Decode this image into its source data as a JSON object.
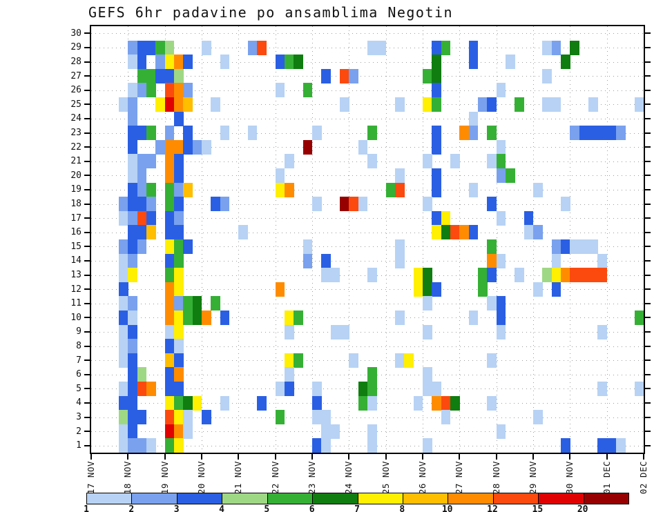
{
  "chart_data": {
    "type": "heatmap",
    "title": "GEFS 6hr padavine po ansamblima Negotin",
    "members": 30,
    "steps_per_day": 4,
    "x_tick_labels": [
      "17 NOV",
      "18 NOV",
      "19 NOV",
      "20 NOV",
      "21 NOV",
      "22 NOV",
      "23 NOV",
      "24 NOV",
      "25 NOV",
      "26 NOV",
      "27 NOV",
      "28 NOV",
      "29 NOV",
      "30 NOV",
      "01 DEC",
      "02 DEC"
    ],
    "y_tick_labels": [
      "1",
      "2",
      "3",
      "4",
      "5",
      "6",
      "7",
      "8",
      "9",
      "10",
      "11",
      "12",
      "13",
      "14",
      "15",
      "16",
      "17",
      "18",
      "19",
      "20",
      "21",
      "22",
      "23",
      "24",
      "25",
      "26",
      "27",
      "28",
      "29",
      "30"
    ],
    "colorbar": {
      "labels": [
        "1",
        "2",
        "3",
        "4",
        "5",
        "6",
        "7",
        "8",
        "10",
        "12",
        "15",
        "20"
      ],
      "thresholds": [
        1,
        2,
        3,
        4,
        5,
        6,
        7,
        8,
        10,
        12,
        15,
        20
      ],
      "colors": [
        "#b7d2f4",
        "#79a1ee",
        "#2a5fe4",
        "#9fd884",
        "#35b035",
        "#0f7d0f",
        "#ffef00",
        "#ffbe00",
        "#ff8c00",
        "#fc4a0e",
        "#e00202",
        "#970000"
      ]
    },
    "cells": [
      [
        29,
        4,
        2.5
      ],
      [
        29,
        5,
        3.5
      ],
      [
        29,
        6,
        3.5
      ],
      [
        29,
        7,
        5.5
      ],
      [
        29,
        8,
        4.5
      ],
      [
        29,
        12,
        1.5
      ],
      [
        29,
        17,
        2.5
      ],
      [
        29,
        18,
        13
      ],
      [
        29,
        30,
        1.5
      ],
      [
        29,
        31,
        1.5
      ],
      [
        29,
        37,
        3.5
      ],
      [
        29,
        38,
        5.5
      ],
      [
        29,
        41,
        3.5
      ],
      [
        29,
        49,
        1.5
      ],
      [
        29,
        50,
        2.5
      ],
      [
        29,
        52,
        6.5
      ],
      [
        28,
        4,
        1.5
      ],
      [
        28,
        5,
        3.5
      ],
      [
        28,
        7,
        2.5
      ],
      [
        28,
        8,
        7.5
      ],
      [
        28,
        9,
        11
      ],
      [
        28,
        10,
        3.5
      ],
      [
        28,
        14,
        1.5
      ],
      [
        28,
        20,
        3.5
      ],
      [
        28,
        21,
        5.5
      ],
      [
        28,
        22,
        6.5
      ],
      [
        28,
        37,
        6.5
      ],
      [
        28,
        41,
        3.5
      ],
      [
        28,
        45,
        1.5
      ],
      [
        28,
        51,
        6.5
      ],
      [
        27,
        5,
        5.5
      ],
      [
        27,
        6,
        5.5
      ],
      [
        27,
        7,
        3.5
      ],
      [
        27,
        8,
        3.5
      ],
      [
        27,
        9,
        4.5
      ],
      [
        27,
        25,
        3.5
      ],
      [
        27,
        27,
        13
      ],
      [
        27,
        28,
        2.5
      ],
      [
        27,
        36,
        5.5
      ],
      [
        27,
        37,
        6.5
      ],
      [
        27,
        49,
        1.5
      ],
      [
        26,
        4,
        1.5
      ],
      [
        26,
        5,
        2.5
      ],
      [
        26,
        6,
        5.5
      ],
      [
        26,
        8,
        13
      ],
      [
        26,
        9,
        11
      ],
      [
        26,
        10,
        2.5
      ],
      [
        26,
        20,
        1.5
      ],
      [
        26,
        23,
        5.5
      ],
      [
        26,
        37,
        3.5
      ],
      [
        26,
        44,
        1.5
      ],
      [
        25,
        3,
        1.5
      ],
      [
        25,
        4,
        2.5
      ],
      [
        25,
        7,
        7.5
      ],
      [
        25,
        8,
        17
      ],
      [
        25,
        9,
        11
      ],
      [
        25,
        10,
        9
      ],
      [
        25,
        13,
        1.5
      ],
      [
        25,
        27,
        1.5
      ],
      [
        25,
        33,
        1.5
      ],
      [
        25,
        36,
        7.5
      ],
      [
        25,
        37,
        5.5
      ],
      [
        25,
        42,
        2.5
      ],
      [
        25,
        43,
        3.5
      ],
      [
        25,
        46,
        5.5
      ],
      [
        25,
        49,
        1.5
      ],
      [
        25,
        50,
        1.5
      ],
      [
        25,
        54,
        1.5
      ],
      [
        25,
        59,
        1.5
      ],
      [
        24,
        4,
        2.5
      ],
      [
        24,
        9,
        3.5
      ],
      [
        24,
        41,
        1.5
      ],
      [
        23,
        4,
        3.5
      ],
      [
        23,
        5,
        3.5
      ],
      [
        23,
        6,
        5.5
      ],
      [
        23,
        8,
        2.5
      ],
      [
        23,
        10,
        3.5
      ],
      [
        23,
        14,
        1.5
      ],
      [
        23,
        17,
        1.5
      ],
      [
        23,
        24,
        1.5
      ],
      [
        23,
        30,
        5.5
      ],
      [
        23,
        37,
        3.5
      ],
      [
        23,
        40,
        11
      ],
      [
        23,
        41,
        2.5
      ],
      [
        23,
        43,
        5.5
      ],
      [
        23,
        52,
        2.5
      ],
      [
        23,
        53,
        3.5
      ],
      [
        23,
        54,
        3.5
      ],
      [
        23,
        55,
        3.5
      ],
      [
        23,
        56,
        3.5
      ],
      [
        23,
        57,
        2.5
      ],
      [
        22,
        4,
        3.5
      ],
      [
        22,
        7,
        2.5
      ],
      [
        22,
        8,
        11
      ],
      [
        22,
        9,
        11
      ],
      [
        22,
        10,
        3.5
      ],
      [
        22,
        11,
        2.5
      ],
      [
        22,
        12,
        1.5
      ],
      [
        22,
        23,
        25
      ],
      [
        22,
        29,
        1.5
      ],
      [
        22,
        37,
        3.5
      ],
      [
        22,
        44,
        1.5
      ],
      [
        21,
        4,
        1.5
      ],
      [
        21,
        5,
        2.5
      ],
      [
        21,
        6,
        2.5
      ],
      [
        21,
        8,
        11
      ],
      [
        21,
        9,
        3.5
      ],
      [
        21,
        21,
        1.5
      ],
      [
        21,
        30,
        1.5
      ],
      [
        21,
        36,
        1.5
      ],
      [
        21,
        39,
        1.5
      ],
      [
        21,
        43,
        1.5
      ],
      [
        21,
        44,
        5.5
      ],
      [
        20,
        4,
        1.5
      ],
      [
        20,
        5,
        2.5
      ],
      [
        20,
        8,
        11
      ],
      [
        20,
        9,
        3.5
      ],
      [
        20,
        20,
        1.5
      ],
      [
        20,
        33,
        1.5
      ],
      [
        20,
        37,
        3.5
      ],
      [
        20,
        44,
        2.5
      ],
      [
        20,
        45,
        5.5
      ],
      [
        19,
        4,
        3.5
      ],
      [
        19,
        5,
        2.5
      ],
      [
        19,
        6,
        5.5
      ],
      [
        19,
        8,
        5.5
      ],
      [
        19,
        9,
        2.5
      ],
      [
        19,
        10,
        9
      ],
      [
        19,
        20,
        7.5
      ],
      [
        19,
        21,
        11
      ],
      [
        19,
        32,
        5.5
      ],
      [
        19,
        33,
        13
      ],
      [
        19,
        37,
        3.5
      ],
      [
        19,
        41,
        1.5
      ],
      [
        19,
        48,
        1.5
      ],
      [
        18,
        3,
        2.5
      ],
      [
        18,
        4,
        3.5
      ],
      [
        18,
        5,
        3.5
      ],
      [
        18,
        6,
        2.5
      ],
      [
        18,
        8,
        5.5
      ],
      [
        18,
        9,
        3.5
      ],
      [
        18,
        13,
        3.5
      ],
      [
        18,
        14,
        2.5
      ],
      [
        18,
        24,
        1.5
      ],
      [
        18,
        27,
        25
      ],
      [
        18,
        28,
        13
      ],
      [
        18,
        29,
        1.5
      ],
      [
        18,
        36,
        1.5
      ],
      [
        18,
        43,
        3.5
      ],
      [
        18,
        51,
        1.5
      ],
      [
        17,
        3,
        1.5
      ],
      [
        17,
        4,
        2.5
      ],
      [
        17,
        5,
        13
      ],
      [
        17,
        6,
        3.5
      ],
      [
        17,
        8,
        3.5
      ],
      [
        17,
        9,
        2.5
      ],
      [
        17,
        37,
        3.5
      ],
      [
        17,
        38,
        7.5
      ],
      [
        17,
        44,
        1.5
      ],
      [
        17,
        47,
        3.5
      ],
      [
        16,
        4,
        3.5
      ],
      [
        16,
        5,
        3.5
      ],
      [
        16,
        6,
        9
      ],
      [
        16,
        8,
        3.5
      ],
      [
        16,
        9,
        3.5
      ],
      [
        16,
        16,
        1.5
      ],
      [
        16,
        37,
        7.5
      ],
      [
        16,
        38,
        6.5
      ],
      [
        16,
        39,
        13
      ],
      [
        16,
        40,
        11
      ],
      [
        16,
        41,
        3.5
      ],
      [
        16,
        47,
        1.5
      ],
      [
        16,
        48,
        2.5
      ],
      [
        15,
        3,
        2.5
      ],
      [
        15,
        4,
        3.5
      ],
      [
        15,
        5,
        2.5
      ],
      [
        15,
        8,
        7.5
      ],
      [
        15,
        9,
        5.5
      ],
      [
        15,
        10,
        3.5
      ],
      [
        15,
        23,
        1.5
      ],
      [
        15,
        33,
        1.5
      ],
      [
        15,
        43,
        5.5
      ],
      [
        15,
        50,
        2.5
      ],
      [
        15,
        51,
        3.5
      ],
      [
        15,
        52,
        1.5
      ],
      [
        15,
        53,
        1.5
      ],
      [
        15,
        54,
        1.5
      ],
      [
        14,
        3,
        1.5
      ],
      [
        14,
        4,
        2.5
      ],
      [
        14,
        8,
        3.5
      ],
      [
        14,
        9,
        5.5
      ],
      [
        14,
        23,
        2.5
      ],
      [
        14,
        25,
        3.5
      ],
      [
        14,
        33,
        1.5
      ],
      [
        14,
        43,
        11
      ],
      [
        14,
        44,
        1.5
      ],
      [
        14,
        50,
        1.5
      ],
      [
        14,
        55,
        1.5
      ],
      [
        13,
        3,
        1.5
      ],
      [
        13,
        4,
        7.5
      ],
      [
        13,
        8,
        5.5
      ],
      [
        13,
        9,
        7.5
      ],
      [
        13,
        25,
        1.5
      ],
      [
        13,
        26,
        1.5
      ],
      [
        13,
        30,
        1.5
      ],
      [
        13,
        35,
        7.5
      ],
      [
        13,
        36,
        6.5
      ],
      [
        13,
        42,
        5.5
      ],
      [
        13,
        43,
        3.5
      ],
      [
        13,
        46,
        1.5
      ],
      [
        13,
        49,
        4.5
      ],
      [
        13,
        50,
        7.5
      ],
      [
        13,
        51,
        11
      ],
      [
        13,
        52,
        13
      ],
      [
        13,
        53,
        13
      ],
      [
        13,
        54,
        13
      ],
      [
        13,
        55,
        13
      ],
      [
        12,
        3,
        3.5
      ],
      [
        12,
        8,
        11
      ],
      [
        12,
        9,
        7.5
      ],
      [
        12,
        20,
        11
      ],
      [
        12,
        35,
        7.5
      ],
      [
        12,
        36,
        6.5
      ],
      [
        12,
        37,
        3.5
      ],
      [
        12,
        42,
        5.5
      ],
      [
        12,
        48,
        1.5
      ],
      [
        12,
        50,
        3.5
      ],
      [
        11,
        3,
        1.5
      ],
      [
        11,
        4,
        2.5
      ],
      [
        11,
        8,
        11
      ],
      [
        11,
        9,
        2.5
      ],
      [
        11,
        10,
        5.5
      ],
      [
        11,
        11,
        6.5
      ],
      [
        11,
        13,
        5.5
      ],
      [
        11,
        36,
        1.5
      ],
      [
        11,
        43,
        1.5
      ],
      [
        11,
        44,
        3.5
      ],
      [
        10,
        3,
        3.5
      ],
      [
        10,
        4,
        1.5
      ],
      [
        10,
        8,
        11
      ],
      [
        10,
        9,
        7.5
      ],
      [
        10,
        10,
        5.5
      ],
      [
        10,
        11,
        6.5
      ],
      [
        10,
        12,
        11
      ],
      [
        10,
        14,
        3.5
      ],
      [
        10,
        21,
        7.5
      ],
      [
        10,
        22,
        5.5
      ],
      [
        10,
        33,
        1.5
      ],
      [
        10,
        41,
        1.5
      ],
      [
        10,
        44,
        3.5
      ],
      [
        10,
        59,
        5.5
      ],
      [
        9,
        3,
        1.5
      ],
      [
        9,
        4,
        3.5
      ],
      [
        9,
        8,
        1.5
      ],
      [
        9,
        9,
        7.5
      ],
      [
        9,
        21,
        1.5
      ],
      [
        9,
        26,
        1.5
      ],
      [
        9,
        27,
        1.5
      ],
      [
        9,
        36,
        1.5
      ],
      [
        9,
        44,
        1.5
      ],
      [
        9,
        55,
        1.5
      ],
      [
        8,
        3,
        1.5
      ],
      [
        8,
        4,
        2.5
      ],
      [
        8,
        8,
        3.5
      ],
      [
        8,
        9,
        1.5
      ],
      [
        7,
        3,
        1.5
      ],
      [
        7,
        4,
        3.5
      ],
      [
        7,
        8,
        9
      ],
      [
        7,
        9,
        3.5
      ],
      [
        7,
        21,
        7.5
      ],
      [
        7,
        22,
        5.5
      ],
      [
        7,
        28,
        1.5
      ],
      [
        7,
        33,
        1.5
      ],
      [
        7,
        34,
        7.5
      ],
      [
        7,
        43,
        1.5
      ],
      [
        6,
        4,
        3.5
      ],
      [
        6,
        5,
        4.5
      ],
      [
        6,
        8,
        3.5
      ],
      [
        6,
        9,
        11
      ],
      [
        6,
        21,
        1.5
      ],
      [
        6,
        30,
        5.5
      ],
      [
        6,
        36,
        1.5
      ],
      [
        5,
        3,
        1.5
      ],
      [
        5,
        4,
        3.5
      ],
      [
        5,
        5,
        13
      ],
      [
        5,
        6,
        11
      ],
      [
        5,
        8,
        3.5
      ],
      [
        5,
        9,
        3.5
      ],
      [
        5,
        20,
        1.5
      ],
      [
        5,
        21,
        3.5
      ],
      [
        5,
        24,
        1.5
      ],
      [
        5,
        29,
        6.5
      ],
      [
        5,
        30,
        5.5
      ],
      [
        5,
        36,
        1.5
      ],
      [
        5,
        37,
        1.5
      ],
      [
        5,
        55,
        1.5
      ],
      [
        5,
        59,
        1.5
      ],
      [
        4,
        3,
        3.5
      ],
      [
        4,
        4,
        3.5
      ],
      [
        4,
        8,
        7.5
      ],
      [
        4,
        9,
        5.5
      ],
      [
        4,
        10,
        6.5
      ],
      [
        4,
        11,
        7.5
      ],
      [
        4,
        14,
        1.5
      ],
      [
        4,
        18,
        3.5
      ],
      [
        4,
        24,
        3.5
      ],
      [
        4,
        29,
        5.5
      ],
      [
        4,
        30,
        1.5
      ],
      [
        4,
        35,
        1.5
      ],
      [
        4,
        37,
        11
      ],
      [
        4,
        38,
        13
      ],
      [
        4,
        39,
        6.5
      ],
      [
        4,
        43,
        1.5
      ],
      [
        3,
        3,
        4.5
      ],
      [
        3,
        4,
        3.5
      ],
      [
        3,
        5,
        3.5
      ],
      [
        3,
        8,
        13
      ],
      [
        3,
        9,
        7.5
      ],
      [
        3,
        10,
        1.5
      ],
      [
        3,
        12,
        3.5
      ],
      [
        3,
        20,
        5.5
      ],
      [
        3,
        24,
        1.5
      ],
      [
        3,
        25,
        1.5
      ],
      [
        3,
        38,
        1.5
      ],
      [
        3,
        48,
        1.5
      ],
      [
        2,
        3,
        1.5
      ],
      [
        2,
        4,
        3.5
      ],
      [
        2,
        8,
        17
      ],
      [
        2,
        9,
        11
      ],
      [
        2,
        10,
        1.5
      ],
      [
        2,
        25,
        1.5
      ],
      [
        2,
        26,
        1.5
      ],
      [
        2,
        30,
        1.5
      ],
      [
        2,
        44,
        1.5
      ],
      [
        1,
        3,
        1.5
      ],
      [
        1,
        4,
        2.5
      ],
      [
        1,
        5,
        2.5
      ],
      [
        1,
        6,
        1.5
      ],
      [
        1,
        8,
        5.5
      ],
      [
        1,
        9,
        7.5
      ],
      [
        1,
        24,
        3.5
      ],
      [
        1,
        25,
        1.5
      ],
      [
        1,
        30,
        1.5
      ],
      [
        1,
        36,
        1.5
      ],
      [
        1,
        51,
        3.5
      ],
      [
        1,
        55,
        3.5
      ],
      [
        1,
        56,
        3.5
      ],
      [
        1,
        57,
        1.5
      ]
    ]
  }
}
